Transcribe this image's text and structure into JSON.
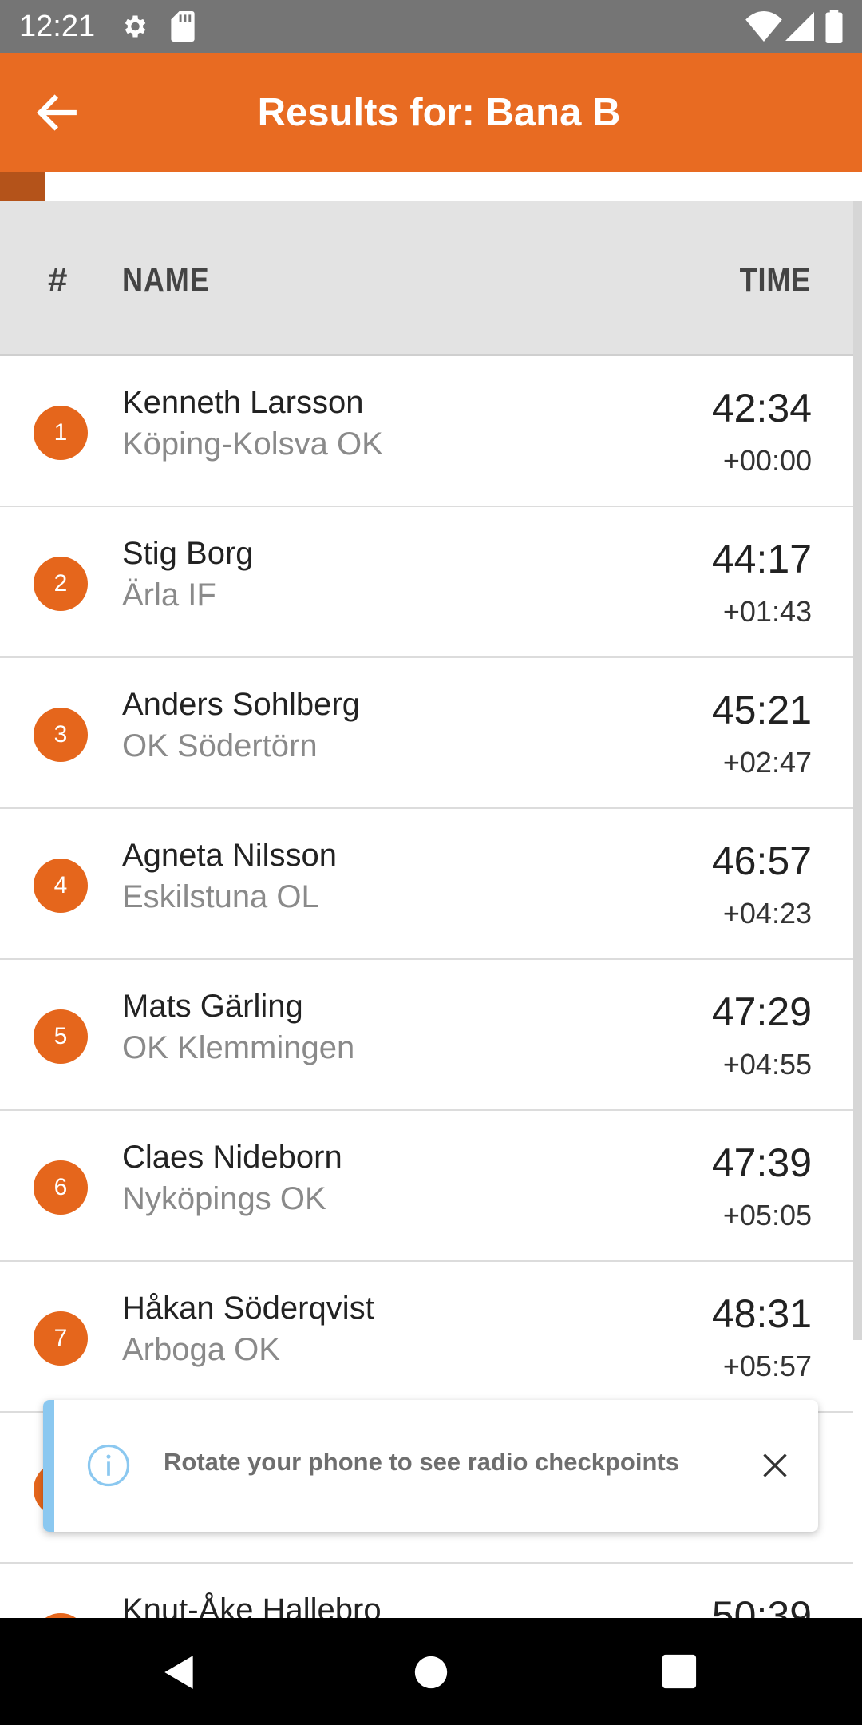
{
  "status_bar": {
    "time": "12:21",
    "icons": [
      "gear-icon",
      "sd-card-icon",
      "wifi-icon",
      "signal-icon",
      "battery-icon"
    ]
  },
  "app_bar": {
    "title": "Results for: Bana B",
    "back_icon": "arrow-left-icon",
    "background": "#e86b22"
  },
  "columns": {
    "rank": "#",
    "name": "NAME",
    "time": "TIME"
  },
  "results": [
    {
      "rank": "1",
      "name": "Kenneth Larsson",
      "club": "Köping-Kolsva OK",
      "time": "42:34",
      "diff": "+00:00"
    },
    {
      "rank": "2",
      "name": "Stig Borg",
      "club": "Ärla IF",
      "time": "44:17",
      "diff": "+01:43"
    },
    {
      "rank": "3",
      "name": "Anders Sohlberg",
      "club": "OK Södertörn",
      "time": "45:21",
      "diff": "+02:47"
    },
    {
      "rank": "4",
      "name": "Agneta Nilsson",
      "club": "Eskilstuna OL",
      "time": "46:57",
      "diff": "+04:23"
    },
    {
      "rank": "5",
      "name": "Mats Gärling",
      "club": "OK Klemmingen",
      "time": "47:29",
      "diff": "+04:55"
    },
    {
      "rank": "6",
      "name": "Claes Nideborn",
      "club": "Nyköpings OK",
      "time": "47:39",
      "diff": "+05:05"
    },
    {
      "rank": "7",
      "name": "Håkan Söderqvist",
      "club": "Arboga OK",
      "time": "48:31",
      "diff": "+05:57"
    },
    {
      "rank": "",
      "name": "",
      "club": "",
      "time": "",
      "diff": ""
    },
    {
      "rank": "",
      "name": "Knut-Åke Hallebro",
      "club": "",
      "time": "50:39",
      "diff": ""
    }
  ],
  "toast": {
    "message": "Rotate your phone to see radio checkpoints",
    "icon": "info-icon",
    "close_icon": "close-icon",
    "accent": "#8bc8f0"
  },
  "nav_bar": {
    "icons": [
      "nav-back-icon",
      "nav-home-icon",
      "nav-recents-icon"
    ]
  },
  "colors": {
    "brand_orange": "#e86b22",
    "rank_badge": "#e5661c"
  }
}
